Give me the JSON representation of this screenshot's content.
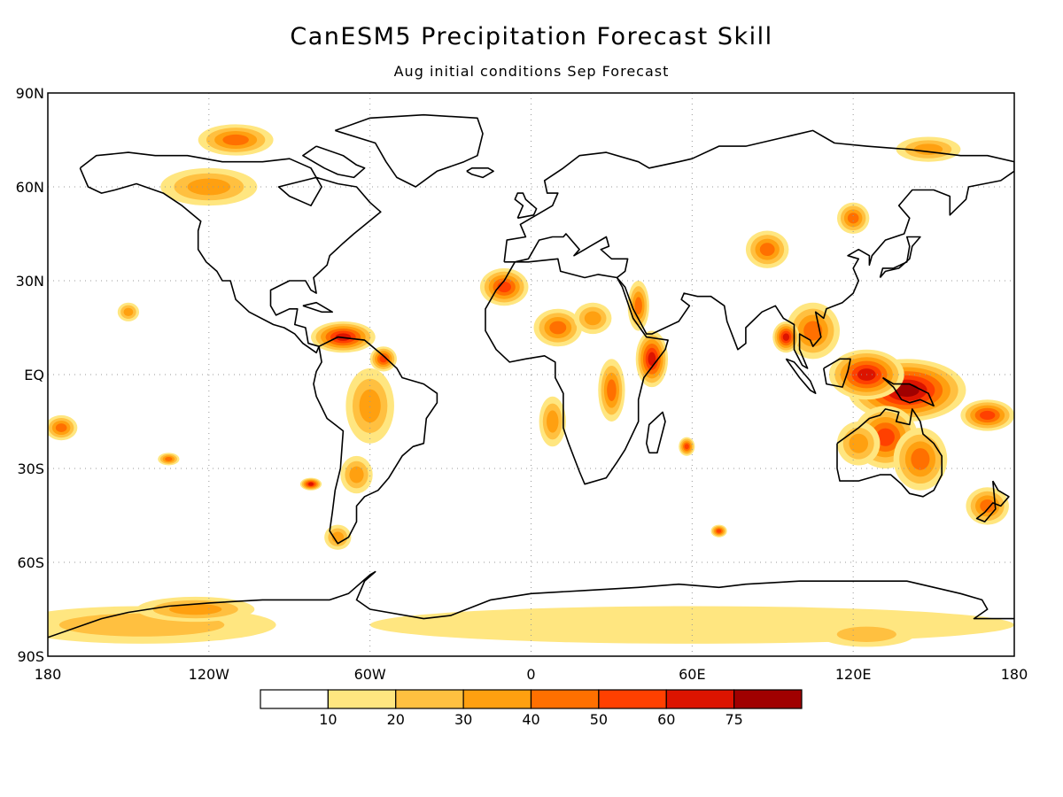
{
  "title": "CanESM5 Precipitation Forecast Skill",
  "subtitle": "Aug initial conditions  Sep Forecast",
  "lat_labels": [
    "90N",
    "60N",
    "30N",
    "EQ",
    "30S",
    "60S",
    "90S"
  ],
  "lon_labels": [
    "180",
    "120W",
    "60W",
    "0",
    "60E",
    "120E",
    "180"
  ],
  "colorbar": {
    "labels": [
      "10",
      "20",
      "30",
      "40",
      "50",
      "60",
      "75"
    ],
    "colors": [
      "#ffffff",
      "#ffe680",
      "#ffc040",
      "#ffa010",
      "#ff7000",
      "#ff4000",
      "#dc1400",
      "#a00000"
    ]
  },
  "chart_data": {
    "type": "heatmap",
    "title": "CanESM5 Precipitation Forecast Skill",
    "subtitle": "Aug initial conditions  Sep Forecast",
    "levels": [
      10,
      20,
      30,
      40,
      50,
      60,
      75
    ],
    "xlim": [
      -180,
      180
    ],
    "ylim": [
      -90,
      90
    ],
    "grid": true,
    "regions": [
      {
        "lon": 140,
        "lat": -5,
        "rlon": 22,
        "rlat": 10,
        "value": 78
      },
      {
        "lon": 125,
        "lat": 0,
        "rlon": 14,
        "rlat": 8,
        "value": 70
      },
      {
        "lon": 132,
        "lat": -20,
        "rlon": 12,
        "rlat": 10,
        "value": 55
      },
      {
        "lon": 145,
        "lat": -27,
        "rlon": 10,
        "rlat": 10,
        "value": 48
      },
      {
        "lon": 122,
        "lat": -22,
        "rlon": 8,
        "rlat": 7,
        "value": 35
      },
      {
        "lon": 105,
        "lat": 14,
        "rlon": 10,
        "rlat": 9,
        "value": 45
      },
      {
        "lon": 95,
        "lat": 12,
        "rlon": 5,
        "rlat": 5,
        "value": 60
      },
      {
        "lon": 88,
        "lat": 40,
        "rlon": 8,
        "rlat": 6,
        "value": 42
      },
      {
        "lon": 120,
        "lat": 50,
        "rlon": 6,
        "rlat": 5,
        "value": 45
      },
      {
        "lon": 148,
        "lat": 72,
        "rlon": 12,
        "rlat": 4,
        "value": 35
      },
      {
        "lon": 45,
        "lat": 5,
        "rlon": 6,
        "rlat": 9,
        "value": 68
      },
      {
        "lon": 40,
        "lat": 22,
        "rlon": 4,
        "rlat": 8,
        "value": 45
      },
      {
        "lon": -10,
        "lat": 28,
        "rlon": 9,
        "rlat": 6,
        "value": 50
      },
      {
        "lon": 10,
        "lat": 15,
        "rlon": 9,
        "rlat": 6,
        "value": 42
      },
      {
        "lon": 23,
        "lat": 18,
        "rlon": 7,
        "rlat": 5,
        "value": 30
      },
      {
        "lon": 30,
        "lat": -5,
        "rlon": 5,
        "rlat": 10,
        "value": 40
      },
      {
        "lon": 8,
        "lat": -15,
        "rlon": 5,
        "rlat": 8,
        "value": 30
      },
      {
        "lon": -70,
        "lat": 12,
        "rlon": 12,
        "rlat": 5,
        "value": 62
      },
      {
        "lon": -55,
        "lat": 5,
        "rlon": 5,
        "rlat": 4,
        "value": 55
      },
      {
        "lon": -60,
        "lat": -10,
        "rlon": 9,
        "rlat": 12,
        "value": 35
      },
      {
        "lon": -65,
        "lat": -32,
        "rlon": 6,
        "rlat": 6,
        "value": 35
      },
      {
        "lon": -82,
        "lat": -35,
        "rlon": 4,
        "rlat": 2,
        "value": 65
      },
      {
        "lon": -72,
        "lat": -52,
        "rlon": 5,
        "rlat": 4,
        "value": 30
      },
      {
        "lon": -120,
        "lat": 60,
        "rlon": 18,
        "rlat": 6,
        "value": 35
      },
      {
        "lon": -110,
        "lat": 75,
        "rlon": 14,
        "rlat": 5,
        "value": 45
      },
      {
        "lon": -175,
        "lat": -17,
        "rlon": 6,
        "rlat": 4,
        "value": 40
      },
      {
        "lon": -150,
        "lat": 20,
        "rlon": 4,
        "rlat": 3,
        "value": 35
      },
      {
        "lon": -135,
        "lat": -27,
        "rlon": 4,
        "rlat": 2,
        "value": 45
      },
      {
        "lon": 58,
        "lat": -23,
        "rlon": 3,
        "rlat": 3,
        "value": 50
      },
      {
        "lon": 70,
        "lat": -50,
        "rlon": 3,
        "rlat": 2,
        "value": 50
      },
      {
        "lon": 170,
        "lat": -42,
        "rlon": 8,
        "rlat": 6,
        "value": 45
      },
      {
        "lon": 170,
        "lat": -13,
        "rlon": 10,
        "rlat": 5,
        "value": 55
      },
      {
        "lon": -145,
        "lat": -80,
        "rlon": 50,
        "rlat": 6,
        "value": 22
      },
      {
        "lon": -125,
        "lat": -75,
        "rlon": 22,
        "rlat": 4,
        "value": 38
      },
      {
        "lon": 60,
        "lat": -80,
        "rlon": 120,
        "rlat": 6,
        "value": 12
      },
      {
        "lon": 125,
        "lat": -83,
        "rlon": 18,
        "rlat": 4,
        "value": 25
      }
    ]
  }
}
